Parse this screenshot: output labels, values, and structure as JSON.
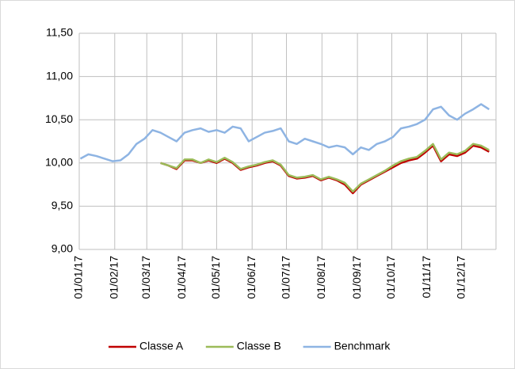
{
  "chart_data": {
    "type": "line",
    "x": [
      "02/01/17",
      "09/01/17",
      "16/01/17",
      "23/01/17",
      "30/01/17",
      "06/02/17",
      "13/02/17",
      "20/02/17",
      "27/02/17",
      "06/03/17",
      "13/03/17",
      "20/03/17",
      "27/03/17",
      "03/04/17",
      "10/04/17",
      "17/04/17",
      "24/04/17",
      "01/05/17",
      "08/05/17",
      "15/05/17",
      "22/05/17",
      "29/05/17",
      "05/06/17",
      "12/06/17",
      "19/06/17",
      "26/06/17",
      "03/07/17",
      "10/07/17",
      "17/07/17",
      "24/07/17",
      "31/07/17",
      "07/08/17",
      "14/08/17",
      "21/08/17",
      "28/08/17",
      "04/09/17",
      "11/09/17",
      "18/09/17",
      "25/09/17",
      "02/10/17",
      "09/10/17",
      "16/10/17",
      "23/10/17",
      "30/10/17",
      "06/11/17",
      "13/11/17",
      "20/11/17",
      "27/11/17",
      "04/12/17",
      "11/12/17",
      "18/12/17",
      "25/12/17"
    ],
    "series": [
      {
        "name": "Classe A",
        "color": "#c00000",
        "values": [
          null,
          null,
          null,
          null,
          null,
          null,
          null,
          null,
          null,
          null,
          10.0,
          9.97,
          9.93,
          10.03,
          10.03,
          10.0,
          10.03,
          10.0,
          10.05,
          10.0,
          9.92,
          9.95,
          9.97,
          10.0,
          10.02,
          9.97,
          9.85,
          9.82,
          9.83,
          9.85,
          9.8,
          9.83,
          9.8,
          9.75,
          9.65,
          9.75,
          9.8,
          9.85,
          9.9,
          9.95,
          10.0,
          10.03,
          10.05,
          10.12,
          10.2,
          10.02,
          10.1,
          10.08,
          10.12,
          10.2,
          10.18,
          10.13
        ]
      },
      {
        "name": "Classe B",
        "color": "#9bbb59",
        "values": [
          null,
          null,
          null,
          null,
          null,
          null,
          null,
          null,
          null,
          null,
          10.0,
          9.97,
          9.94,
          10.04,
          10.04,
          10.0,
          10.04,
          10.01,
          10.06,
          10.01,
          9.93,
          9.96,
          9.98,
          10.01,
          10.03,
          9.98,
          9.86,
          9.83,
          9.84,
          9.86,
          9.81,
          9.84,
          9.81,
          9.77,
          9.67,
          9.76,
          9.81,
          9.86,
          9.91,
          9.97,
          10.02,
          10.05,
          10.07,
          10.14,
          10.22,
          10.04,
          10.12,
          10.1,
          10.14,
          10.22,
          10.2,
          10.15
        ]
      },
      {
        "name": "Benchmark",
        "color": "#8eb4e3",
        "values": [
          10.05,
          10.1,
          10.08,
          10.05,
          10.02,
          10.03,
          10.1,
          10.22,
          10.28,
          10.38,
          10.35,
          10.3,
          10.25,
          10.35,
          10.38,
          10.4,
          10.36,
          10.38,
          10.35,
          10.42,
          10.4,
          10.25,
          10.3,
          10.35,
          10.37,
          10.4,
          10.25,
          10.22,
          10.28,
          10.25,
          10.22,
          10.18,
          10.2,
          10.18,
          10.1,
          10.18,
          10.15,
          10.22,
          10.25,
          10.3,
          10.4,
          10.42,
          10.45,
          10.5,
          10.62,
          10.65,
          10.55,
          10.5,
          10.57,
          10.62,
          10.68,
          10.62
        ]
      }
    ],
    "xlim": [
      "01/01/17",
      "31/12/17"
    ],
    "xticks": [
      "01/01/17",
      "01/02/17",
      "01/03/17",
      "01/04/17",
      "01/05/17",
      "01/06/17",
      "01/07/17",
      "01/08/17",
      "01/09/17",
      "01/10/17",
      "01/11/17",
      "01/12/17"
    ],
    "ylim": [
      9,
      11.5
    ],
    "yticks": [
      {
        "value": 9,
        "label": "9,00"
      },
      {
        "value": 9.5,
        "label": "9,50"
      },
      {
        "value": 10,
        "label": "10,00"
      },
      {
        "value": 10.5,
        "label": "10,50"
      },
      {
        "value": 11,
        "label": "11,00"
      },
      {
        "value": 11.5,
        "label": "11,50"
      }
    ],
    "grid": true,
    "legend": "bottom"
  }
}
